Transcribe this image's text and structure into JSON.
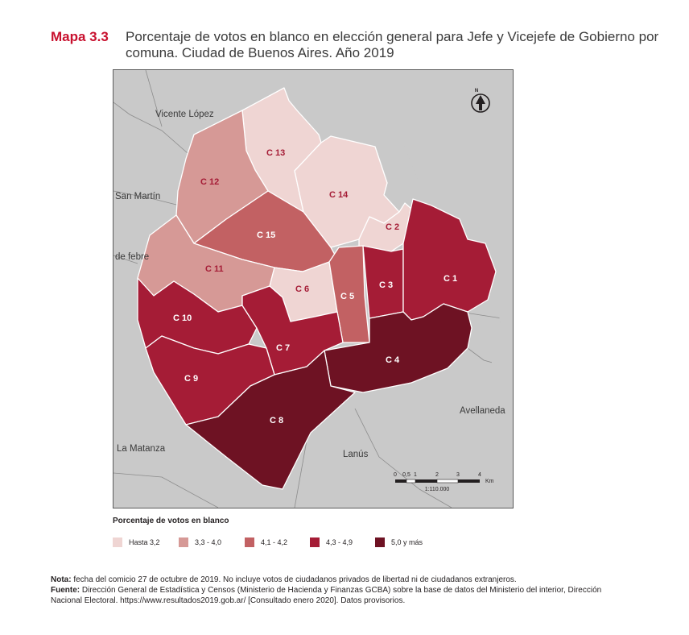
{
  "title": {
    "number": "Mapa 3.3",
    "text": "Porcentaje de votos en blanco en elección general para Jefe y Vicejefe de Gobierno por comuna. Ciudad de Buenos Aires. Año 2019"
  },
  "map": {
    "surrounding_places": [
      "Vicente López",
      "San Martín",
      "de febre",
      "La Matanza",
      "Lanús",
      "Avellaneda"
    ],
    "comunas": [
      {
        "label": "C 1",
        "class": "4,3 - 4,9"
      },
      {
        "label": "C 2",
        "class": "Hasta 3,2"
      },
      {
        "label": "C 3",
        "class": "4,3 - 4,9"
      },
      {
        "label": "C 4",
        "class": "5,0 y más"
      },
      {
        "label": "C 5",
        "class": "4,1 - 4,2"
      },
      {
        "label": "C 6",
        "class": "Hasta 3,2"
      },
      {
        "label": "C 7",
        "class": "4,3 - 4,9"
      },
      {
        "label": "C 8",
        "class": "5,0 y más"
      },
      {
        "label": "C 9",
        "class": "4,3 - 4,9"
      },
      {
        "label": "C 10",
        "class": "4,3 - 4,9"
      },
      {
        "label": "C 11",
        "class": "3,3 - 4,0"
      },
      {
        "label": "C 12",
        "class": "3,3 - 4,0"
      },
      {
        "label": "C 13",
        "class": "Hasta 3,2"
      },
      {
        "label": "C 14",
        "class": "Hasta 3,2"
      },
      {
        "label": "C 15",
        "class": "4,1 - 4,2"
      }
    ],
    "north_label": "N",
    "scale": {
      "ticks": [
        "0",
        "0,5",
        "1",
        "2",
        "3",
        "4"
      ],
      "unit": "Km",
      "ratio": "1:110.000"
    }
  },
  "legend": {
    "title": "Porcentaje de votos en blanco",
    "items": [
      {
        "label": "Hasta 3,2",
        "color": "#efd5d3"
      },
      {
        "label": "3,3 - 4,0",
        "color": "#d69996"
      },
      {
        "label": "4,1 - 4,2",
        "color": "#c26163"
      },
      {
        "label": "4,3 - 4,9",
        "color": "#a51c36"
      },
      {
        "label": "5,0 y más",
        "color": "#6e1223"
      }
    ]
  },
  "notes": {
    "nota_label": "Nota:",
    "nota_text": "fecha del comicio 27 de octubre de 2019. No incluye votos de ciudadanos privados de libertad ni de ciudadanos extranjeros.",
    "fuente_label": "Fuente:",
    "fuente_text": "Dirección General de Estadística y Censos (Ministerio de Hacienda y Finanzas GCBA) sobre la base de datos del Ministerio del interior, Dirección Nacional Electoral. https://www.resultados2019.gob.ar/ [Consultado enero 2020]. Datos provisorios."
  },
  "colors": {
    "title_accent": "#c8102e",
    "surrounding": "#c9c9c9",
    "boundary": "#ffffff"
  }
}
